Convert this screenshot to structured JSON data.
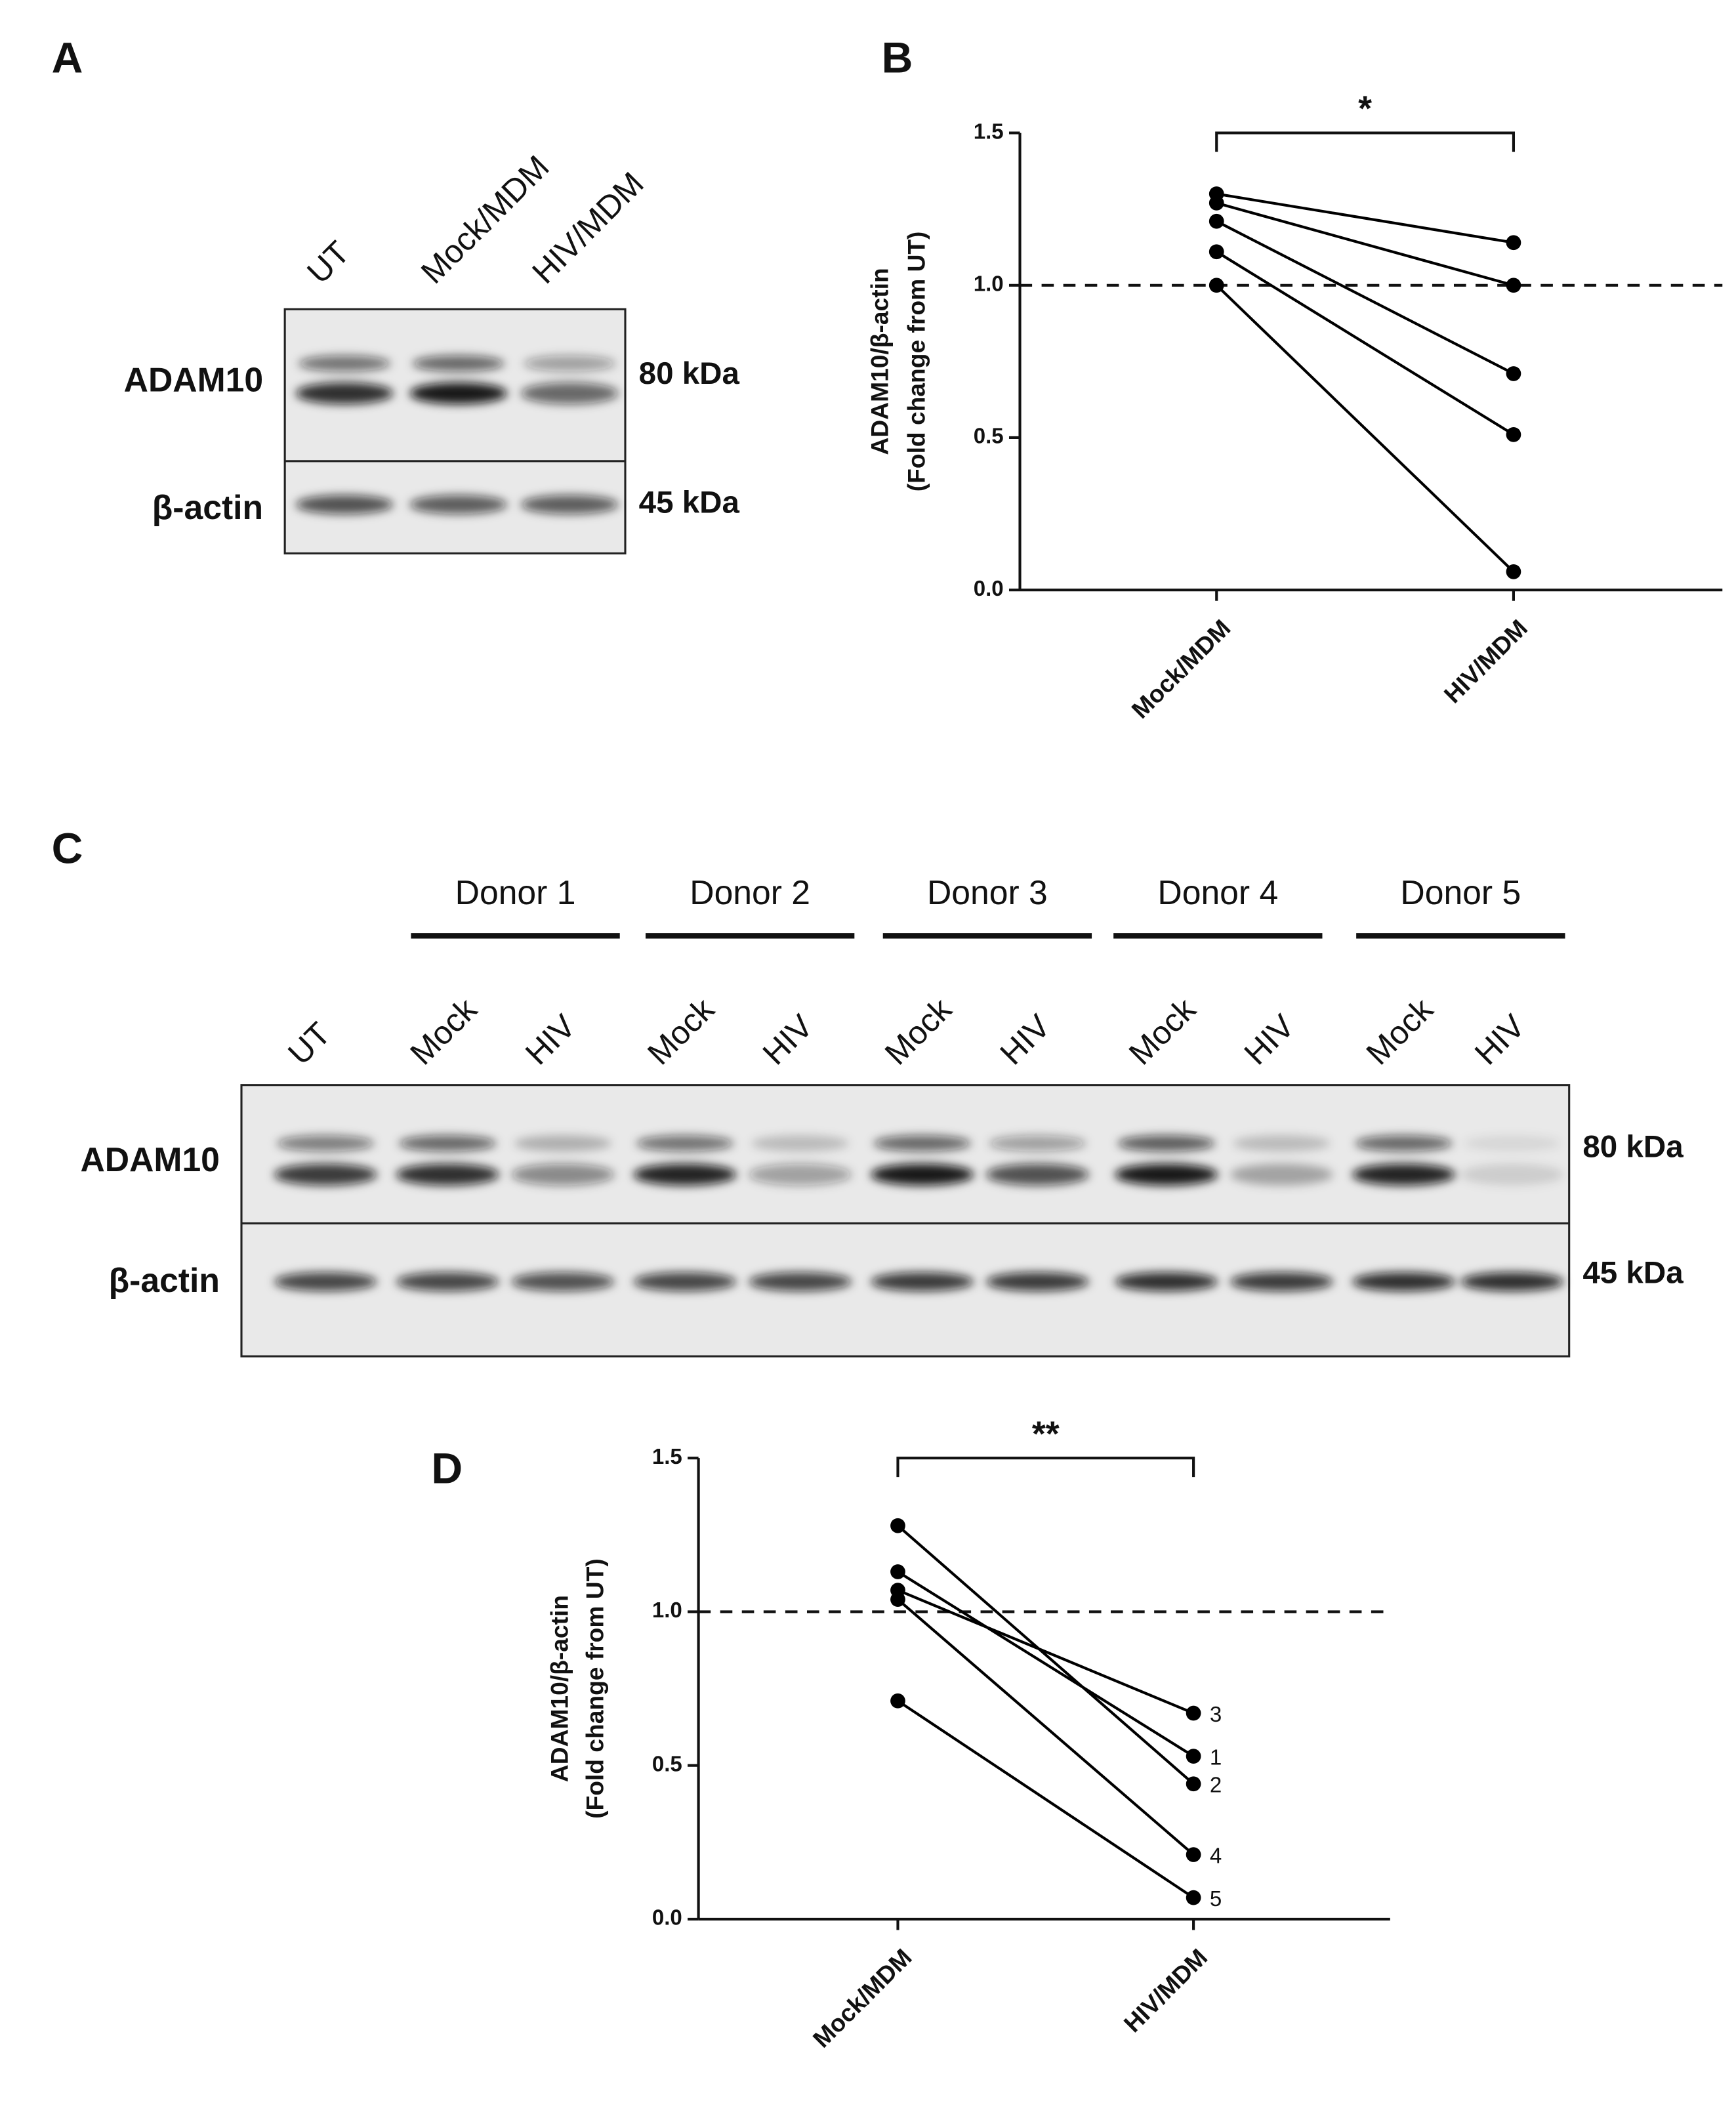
{
  "panel_labels": [
    "A",
    "B",
    "C",
    "D"
  ],
  "blot_a": {
    "lanes": [
      "UT",
      "Mock/MDM",
      "HIV/MDM"
    ],
    "rows": [
      {
        "protein": "ADAM10",
        "size": "80 kDa"
      },
      {
        "protein": "β-actin",
        "size": "45 kDa"
      }
    ]
  },
  "blot_c": {
    "groups": [
      "Donor 1",
      "Donor 2",
      "Donor 3",
      "Donor 4",
      "Donor 5"
    ],
    "lanes": [
      "UT",
      "Mock",
      "HIV",
      "Mock",
      "HIV",
      "Mock",
      "HIV",
      "Mock",
      "HIV",
      "Mock",
      "HIV"
    ],
    "rows": [
      {
        "protein": "ADAM10",
        "size": "80 kDa"
      },
      {
        "protein": "β-actin",
        "size": "45 kDa"
      }
    ]
  },
  "chart_data": [
    {
      "type": "line",
      "ylabel": [
        "ADAM10/β-actin",
        "(Fold change from UT)"
      ],
      "categories": [
        "Mock/MDM",
        "HIV/MDM"
      ],
      "series": [
        {
          "color": "#000000",
          "values": [
            1.3,
            1.14
          ]
        },
        {
          "color": "#000000",
          "values": [
            1.27,
            1.0
          ]
        },
        {
          "color": "#000000",
          "values": [
            1.21,
            0.71
          ]
        },
        {
          "color": "#000000",
          "values": [
            1.11,
            0.51
          ]
        },
        {
          "color": "#000000",
          "values": [
            1.0,
            0.06
          ]
        }
      ],
      "ylim": [
        0,
        1.5
      ],
      "yticks": [
        {
          "value": 0,
          "label": "0.0"
        },
        {
          "value": 0.5,
          "label": "0.5"
        },
        {
          "value": 1,
          "label": "1.0"
        },
        {
          "value": 1.5,
          "label": "1.5"
        }
      ],
      "reference_line": 1,
      "significance": "*"
    },
    {
      "type": "line",
      "ylabel": [
        "ADAM10/β-actin",
        "(Fold change from UT)"
      ],
      "categories": [
        "Mock/MDM",
        "HIV/MDM"
      ],
      "series": [
        {
          "name": "3",
          "color": "#000000",
          "values": [
            1.07,
            0.67
          ]
        },
        {
          "name": "1",
          "color": "#000000",
          "values": [
            1.13,
            0.53
          ]
        },
        {
          "name": "2",
          "color": "#000000",
          "values": [
            1.28,
            0.44
          ]
        },
        {
          "name": "4",
          "color": "#000000",
          "values": [
            1.04,
            0.21
          ]
        },
        {
          "name": "5",
          "color": "#000000",
          "values": [
            0.71,
            0.07
          ]
        }
      ],
      "ylim": [
        0,
        1.5
      ],
      "yticks": [
        {
          "value": 0,
          "label": "0.0"
        },
        {
          "value": 0.5,
          "label": "0.5"
        },
        {
          "value": 1,
          "label": "1.0"
        },
        {
          "value": 1.5,
          "label": "1.5"
        }
      ],
      "reference_line": 1,
      "significance": "**"
    }
  ]
}
